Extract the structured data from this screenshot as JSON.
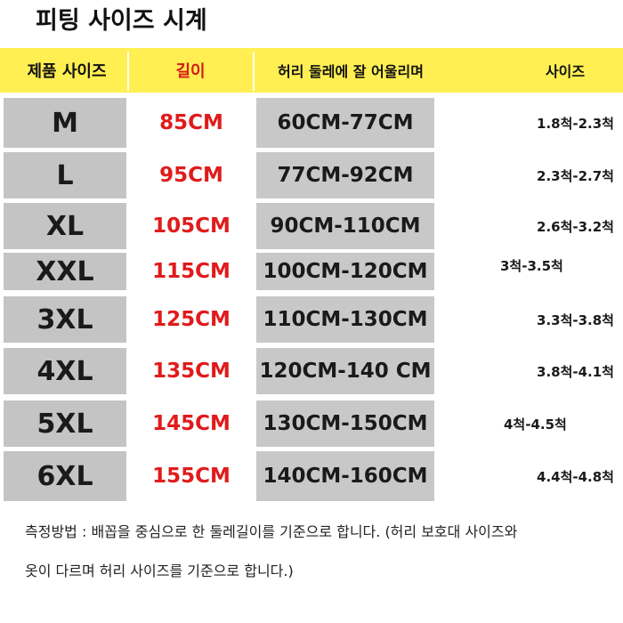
{
  "title": "피팅 사이즈 시계",
  "header": {
    "product_size": "제품 사이즈",
    "length": "길이",
    "waist_fit": "허리 둘레에 잘 어울리며",
    "size": "사이즈"
  },
  "colors": {
    "header_background": "#ffef52",
    "cell_gray": "#c4c4c4",
    "length_red": "#e01b1b"
  },
  "rows": [
    {
      "size": "M",
      "length": "85CM",
      "waist": "60CM-77CM",
      "fit": "1.8척-2.3척"
    },
    {
      "size": "L",
      "length": "95CM",
      "waist": "77CM-92CM",
      "fit": "2.3척-2.7척"
    },
    {
      "size": "XL",
      "length": "105CM",
      "waist": "90CM-110CM",
      "fit": "2.6척-3.2척"
    },
    {
      "size": "XXL",
      "length": "115CM",
      "waist": "100CM-120CM",
      "fit": "3척-3.5척"
    },
    {
      "size": "3XL",
      "length": "125CM",
      "waist": "110CM-130CM",
      "fit": "3.3척-3.8척"
    },
    {
      "size": "4XL",
      "length": "135CM",
      "waist": "120CM-140 CM",
      "fit": "3.8척-4.1척"
    },
    {
      "size": "5XL",
      "length": "145CM",
      "waist": "130CM-150CM",
      "fit": "4척-4.5척"
    },
    {
      "size": "6XL",
      "length": "155CM",
      "waist": "140CM-160CM",
      "fit": "4.4척-4.8척"
    }
  ],
  "footer": {
    "line1": "측정방법 : 배꼽을 중심으로 한 둘레길이를 기준으로 합니다. (허리 보호대 사이즈와",
    "line2": "옷이 다르며 허리 사이즈를 기준으로 합니다.)"
  }
}
